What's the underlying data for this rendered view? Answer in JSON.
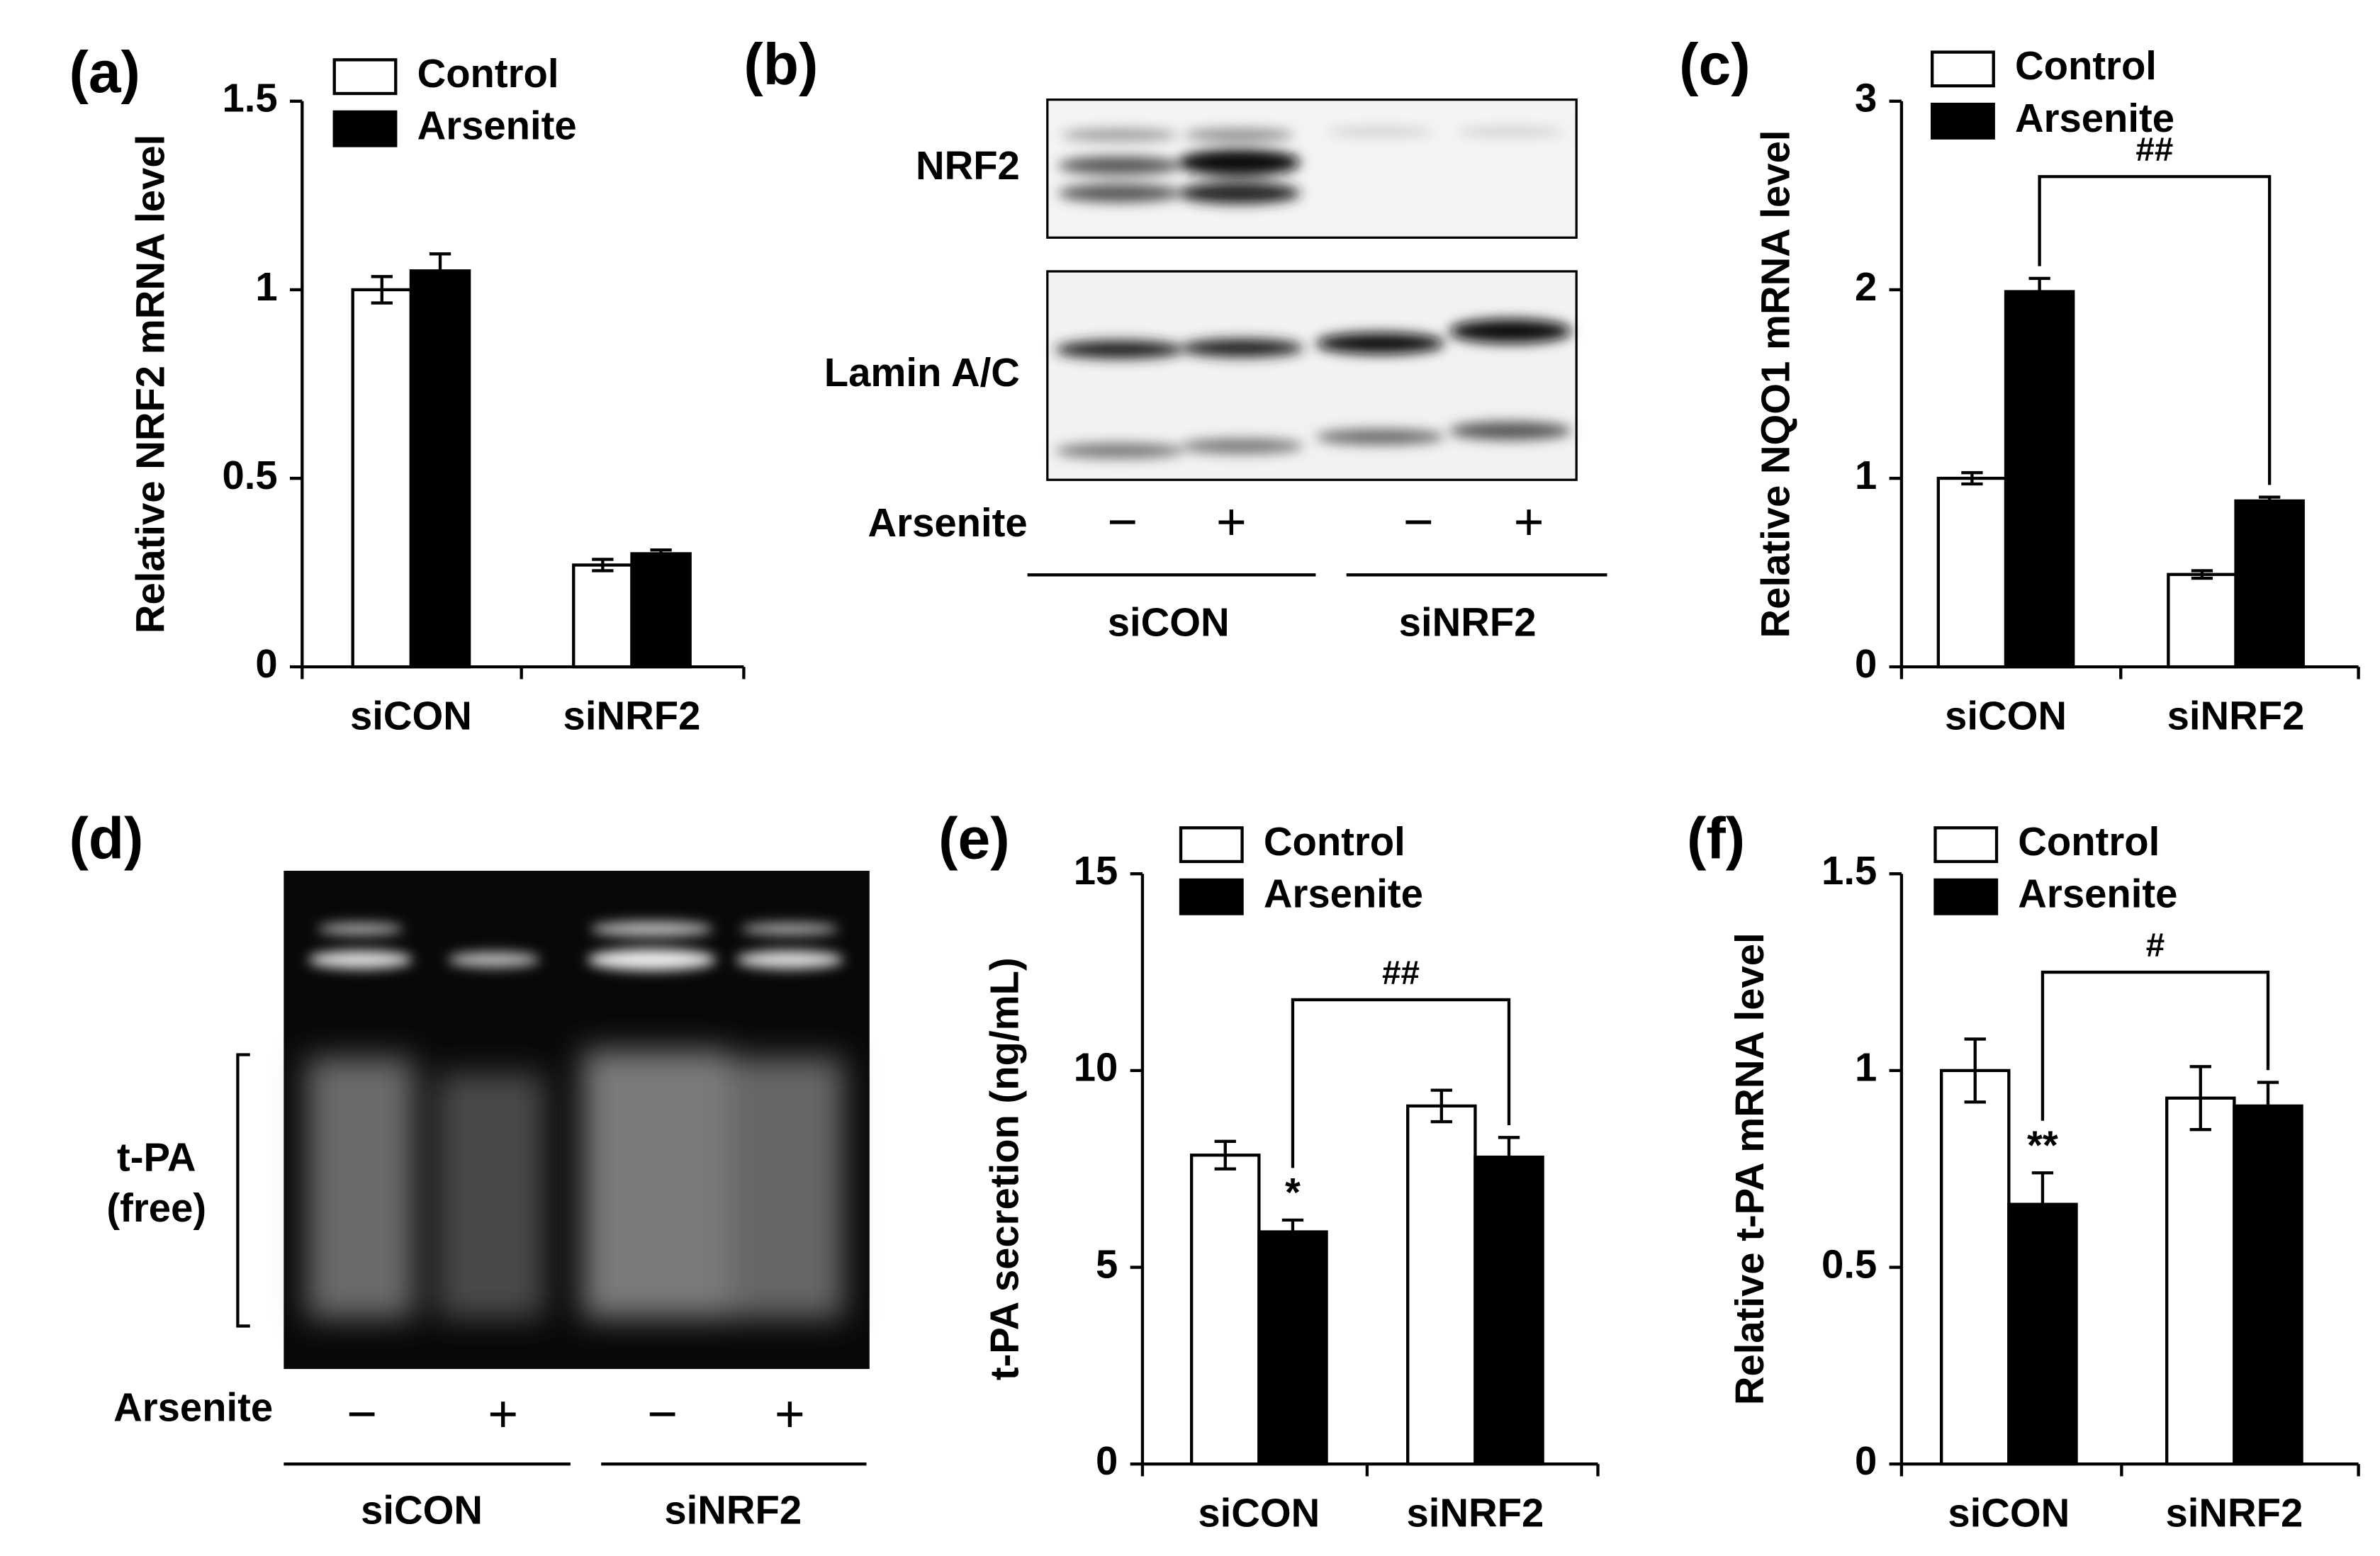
{
  "chart_data": [
    {
      "type": "bar",
      "label": "(a)",
      "y_label": "Relative NRF2 mRNA level",
      "categories": [
        "siCON",
        "siNRF2"
      ],
      "series": [
        {
          "name": "Control",
          "color": "#ffffff",
          "values": [
            1.0,
            0.27
          ],
          "errors": [
            0.035,
            0.015
          ]
        },
        {
          "name": "Arsenite",
          "color": "#000000",
          "values": [
            1.05,
            0.3
          ],
          "errors": [
            0.045,
            0.01
          ]
        }
      ],
      "ylim": [
        0,
        1.5
      ],
      "yticks": [
        0,
        0.5,
        1,
        1.5
      ]
    },
    {
      "type": "bar",
      "label": "(c)",
      "y_label": "Relative NQO1 mRNA level",
      "categories": [
        "siCON",
        "siNRF2"
      ],
      "series": [
        {
          "name": "Control",
          "color": "#ffffff",
          "values": [
            1.0,
            0.49
          ],
          "errors": [
            0.03,
            0.02
          ]
        },
        {
          "name": "Arsenite",
          "color": "#000000",
          "values": [
            1.99,
            0.88
          ],
          "errors": [
            0.07,
            0.02
          ]
        }
      ],
      "bracket": {
        "label": "##",
        "y": 2.6
      },
      "ylim": [
        0,
        3
      ],
      "yticks": [
        0,
        1,
        2,
        3
      ]
    },
    {
      "type": "bar",
      "label": "(e)",
      "y_label": "t-PA secretion (ng/mL)",
      "categories": [
        "siCON",
        "siNRF2"
      ],
      "series": [
        {
          "name": "Control",
          "color": "#ffffff",
          "values": [
            7.85,
            9.1
          ],
          "errors": [
            0.35,
            0.4
          ]
        },
        {
          "name": "Arsenite",
          "color": "#000000",
          "values": [
            5.9,
            7.8
          ],
          "errors": [
            0.3,
            0.5
          ],
          "significance": [
            "*",
            null
          ]
        }
      ],
      "bracket": {
        "label": "##",
        "y": 11.8
      },
      "ylim": [
        0,
        15
      ],
      "yticks": [
        0,
        5,
        10,
        15
      ]
    },
    {
      "type": "bar",
      "label": "(f)",
      "y_label": "Relative t-PA mRNA level",
      "categories": [
        "siCON",
        "siNRF2"
      ],
      "series": [
        {
          "name": "Control",
          "color": "#ffffff",
          "values": [
            1.0,
            0.93
          ],
          "errors": [
            0.08,
            0.08
          ]
        },
        {
          "name": "Arsenite",
          "color": "#000000",
          "values": [
            0.66,
            0.91
          ],
          "errors": [
            0.08,
            0.06
          ],
          "significance": [
            "**",
            null
          ]
        }
      ],
      "bracket": {
        "label": "#",
        "y": 1.25
      },
      "ylim": [
        0,
        1.5
      ],
      "yticks": [
        0,
        0.5,
        1,
        1.5
      ]
    }
  ],
  "blots": [
    {
      "label": "(b)",
      "bands": [
        "NRF2",
        "Lamin A/C"
      ],
      "treatment": "Arsenite",
      "signs": [
        "−",
        "+",
        "−",
        "+"
      ],
      "groups": [
        "siCON",
        "siNRF2"
      ]
    },
    {
      "label": "(d)",
      "bands": [
        "t-PA",
        "(free)"
      ],
      "treatment": "Arsenite",
      "signs": [
        "−",
        "+",
        "−",
        "+"
      ],
      "groups": [
        "siCON",
        "siNRF2"
      ]
    }
  ]
}
